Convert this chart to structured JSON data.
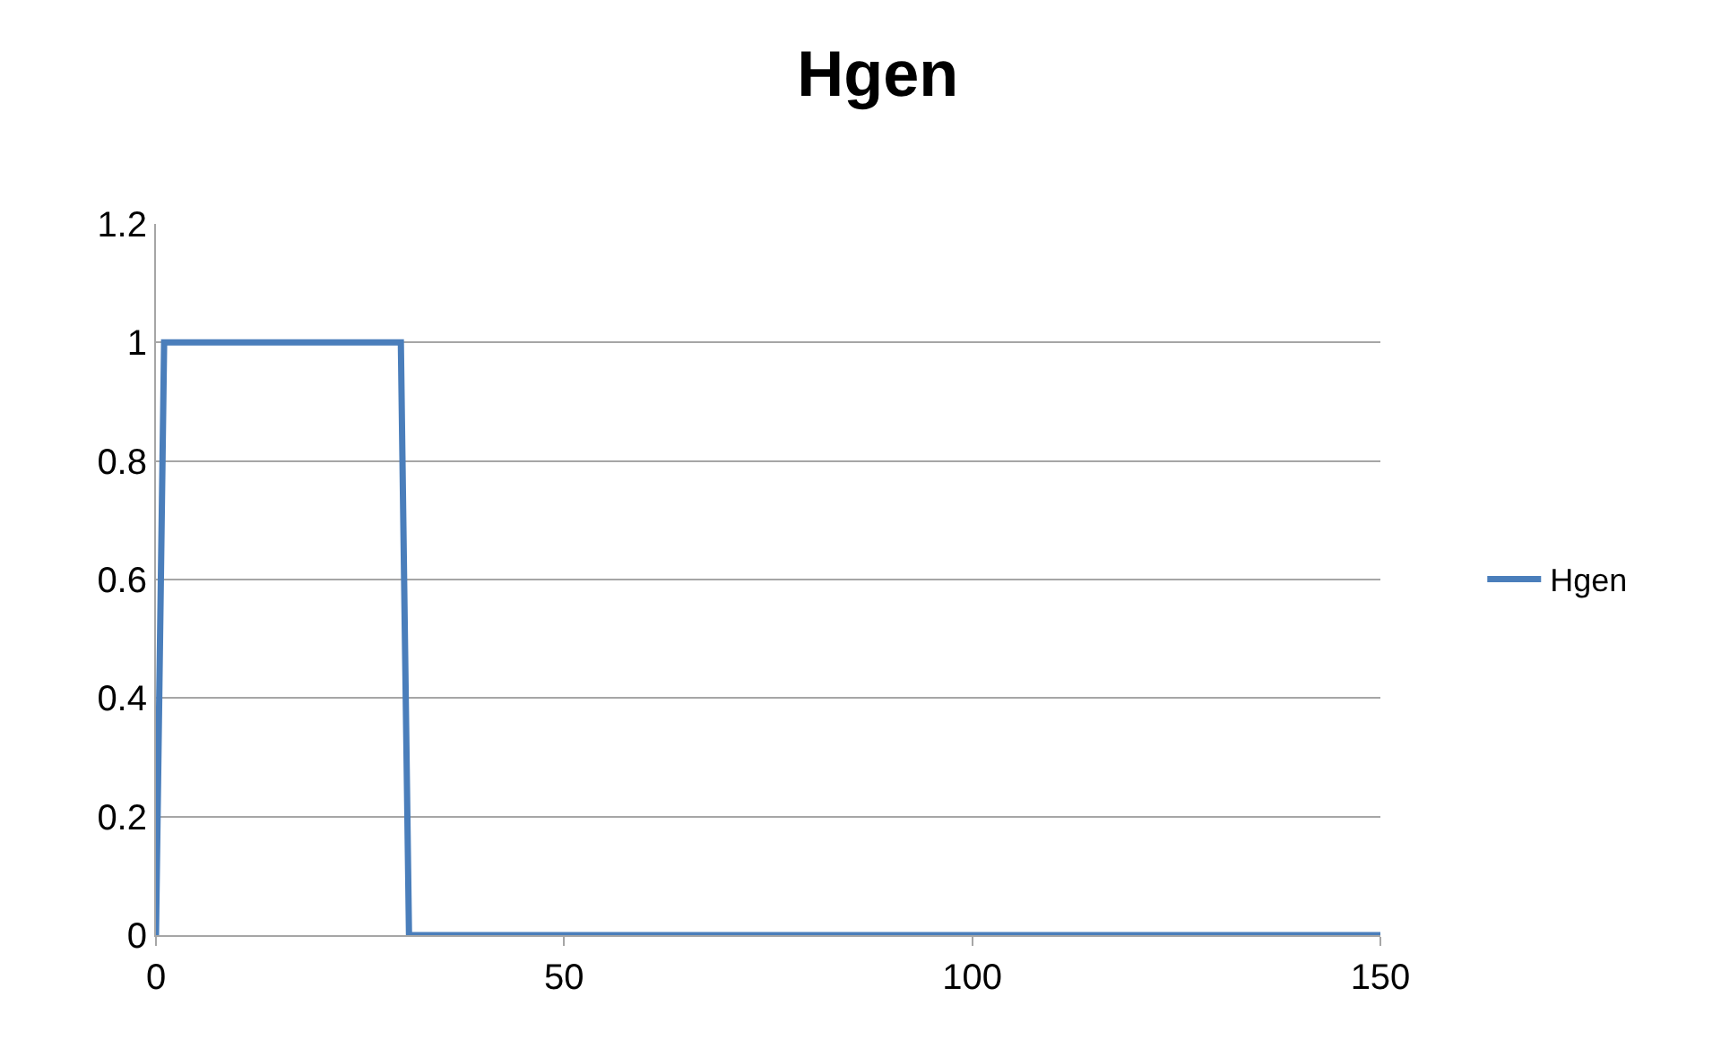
{
  "chart_data": {
    "type": "line",
    "title": "Hgen",
    "x": [
      0,
      1,
      30,
      31,
      150
    ],
    "series": [
      {
        "name": "Hgen",
        "color": "#4a7ebb",
        "values": [
          0,
          1,
          1,
          0,
          0
        ]
      }
    ],
    "xlim": [
      0,
      150
    ],
    "xticks": [
      0,
      50,
      100,
      150
    ],
    "ylim": [
      0,
      1.2
    ],
    "yticks": [
      0,
      0.2,
      0.4,
      0.6,
      0.8,
      1,
      1.2
    ],
    "grid": "y",
    "legend": "right",
    "marker": "none",
    "line_style": "solid"
  }
}
